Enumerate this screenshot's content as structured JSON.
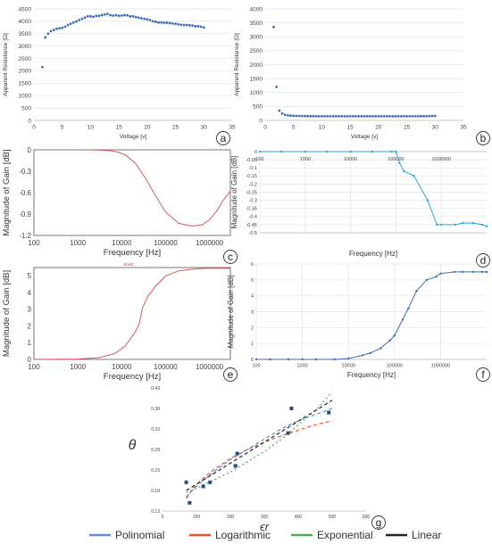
{
  "chart_data": [
    {
      "id": "a",
      "type": "scatter",
      "label": "a",
      "xlabel": "Voltage [v]",
      "ylabel": "Apparent Resistance [Ω]",
      "xlim": [
        0,
        35
      ],
      "ylim": [
        0,
        4500
      ],
      "xticks": [
        0,
        5,
        10,
        15,
        20,
        25,
        30,
        35
      ],
      "yticks": [
        0,
        500,
        1000,
        1500,
        2000,
        2500,
        3000,
        3500,
        4000,
        4500
      ],
      "grid": true,
      "color": "#3b6db4",
      "x": [
        1.5,
        2,
        2.5,
        3,
        3.5,
        4,
        4.5,
        5,
        5.5,
        6,
        6.5,
        7,
        7.5,
        8,
        8.5,
        9,
        9.5,
        10,
        10.5,
        11,
        11.5,
        12,
        12.5,
        13,
        13.5,
        14,
        14.5,
        15,
        15.5,
        16,
        16.5,
        17,
        17.5,
        18,
        18.5,
        19,
        19.5,
        20,
        20.5,
        21,
        21.5,
        22,
        22.5,
        23,
        23.5,
        24,
        24.5,
        25,
        25.5,
        26,
        26.5,
        27,
        27.5,
        28,
        28.5,
        29,
        29.5,
        30
      ],
      "y": [
        2150,
        3350,
        3500,
        3600,
        3650,
        3700,
        3720,
        3740,
        3780,
        3850,
        3900,
        3950,
        4000,
        4050,
        4100,
        4150,
        4200,
        4200,
        4180,
        4220,
        4220,
        4250,
        4270,
        4300,
        4250,
        4230,
        4250,
        4220,
        4230,
        4250,
        4240,
        4200,
        4200,
        4170,
        4150,
        4120,
        4100,
        4080,
        4050,
        4000,
        3980,
        3950,
        3950,
        3940,
        3940,
        3930,
        3910,
        3900,
        3880,
        3860,
        3850,
        3850,
        3840,
        3830,
        3800,
        3800,
        3780,
        3750
      ]
    },
    {
      "id": "b",
      "type": "scatter",
      "label": "b",
      "xlabel": "Voltage [v]",
      "ylabel": "Apparent Resistance [Ω]",
      "xlim": [
        0,
        35
      ],
      "ylim": [
        0,
        4000
      ],
      "xticks": [
        0,
        5,
        10,
        15,
        20,
        25,
        30,
        35
      ],
      "yticks": [
        0,
        500,
        1000,
        1500,
        2000,
        2500,
        3000,
        3500,
        4000
      ],
      "grid": true,
      "color": "#3b6db4",
      "x": [
        1.5,
        2,
        2.5,
        3,
        3.5,
        4,
        4.5,
        5,
        5.5,
        6,
        6.5,
        7,
        7.5,
        8,
        8.5,
        9,
        9.5,
        10,
        10.5,
        11,
        11.5,
        12,
        12.5,
        13,
        13.5,
        14,
        14.5,
        15,
        15.5,
        16,
        16.5,
        17,
        17.5,
        18,
        18.5,
        19,
        19.5,
        20,
        20.5,
        21,
        21.5,
        22,
        22.5,
        23,
        23.5,
        24,
        24.5,
        25,
        25.5,
        26,
        26.5,
        27,
        27.5,
        28,
        28.5,
        29,
        29.5,
        30
      ],
      "y": [
        3350,
        1200,
        350,
        250,
        200,
        180,
        170,
        165,
        160,
        160,
        155,
        155,
        150,
        150,
        150,
        150,
        148,
        148,
        148,
        148,
        148,
        148,
        148,
        148,
        148,
        148,
        148,
        148,
        148,
        148,
        148,
        148,
        148,
        148,
        148,
        148,
        148,
        148,
        148,
        148,
        148,
        148,
        148,
        148,
        148,
        148,
        148,
        148,
        148,
        148,
        148,
        148,
        150,
        150,
        150,
        152,
        155,
        160
      ]
    },
    {
      "id": "c",
      "type": "line",
      "label": "c",
      "xlabel": "Frequency [Hz]",
      "ylabel": "Magnitude of Gain [dB]",
      "xscale": "log",
      "xlim": [
        100,
        3000000
      ],
      "ylim": [
        -1.2,
        0
      ],
      "xticks": [
        100,
        1000,
        10000,
        100000,
        1000000
      ],
      "xticklabels": [
        "100",
        "1000",
        "10000",
        "100000",
        "1000000"
      ],
      "yticks": [
        0,
        -0.3,
        -0.6,
        -0.9,
        -1.2
      ],
      "yticklabels": [
        "0",
        "-0.3",
        "-0.6",
        "-0.9",
        "-1.2"
      ],
      "grid": false,
      "color": "#d35a5a",
      "x": [
        2000,
        5000,
        8000,
        12000,
        20000,
        35000,
        60000,
        100000,
        200000,
        400000,
        700000,
        1000000,
        1500000,
        2000000,
        3000000
      ],
      "y": [
        0,
        -0.01,
        -0.03,
        -0.07,
        -0.18,
        -0.4,
        -0.65,
        -0.87,
        -1.03,
        -1.07,
        -1.05,
        -0.98,
        -0.85,
        -0.72,
        -0.58
      ]
    },
    {
      "id": "d",
      "type": "line",
      "label": "d",
      "xlabel": "Frequency [Hz]",
      "ylabel": "Magnitude of Gain [dB]",
      "xscale": "log",
      "xlim": [
        100,
        10000000
      ],
      "ylim": [
        -0.5,
        0
      ],
      "xticks": [
        100,
        1000,
        10000,
        100000,
        1000000
      ],
      "xticklabels": [
        "100",
        "1000",
        "10000",
        "100000",
        "1000000"
      ],
      "yticks": [
        0,
        -0.05,
        -0.1,
        -0.15,
        -0.2,
        -0.25,
        -0.3,
        -0.35,
        -0.4,
        -0.45,
        -0.5
      ],
      "yticklabels": [
        "0",
        "-0.05",
        "-0.1",
        "-0.15",
        "-0.2",
        "-0.25",
        "-0.3",
        "-0.35",
        "-0.4",
        "-0.45",
        "-0.5"
      ],
      "grid": true,
      "color": "#29a6d8",
      "x": [
        100,
        300,
        1000,
        3000,
        10000,
        30000,
        80000,
        100000,
        120000,
        150000,
        250000,
        500000,
        800000,
        1000000,
        2000000,
        3000000,
        5000000,
        8000000,
        10000000
      ],
      "y": [
        0,
        0,
        0,
        0,
        0,
        0,
        0,
        0,
        -0.07,
        -0.12,
        -0.15,
        -0.3,
        -0.45,
        -0.45,
        -0.45,
        -0.44,
        -0.44,
        -0.45,
        -0.46
      ]
    },
    {
      "id": "e",
      "type": "line",
      "label": "e",
      "xlabel": "Frequency [Hz]",
      "ylabel": "Magnitude of Gain [dB]",
      "xscale": "log",
      "xlim": [
        100,
        3000000
      ],
      "ylim": [
        0,
        5.5
      ],
      "xticks": [
        100,
        1000,
        10000,
        100000,
        1000000
      ],
      "xticklabels": [
        "100",
        "1000",
        "10000",
        "100000",
        "1000000"
      ],
      "yticks": [
        0,
        1,
        2,
        3,
        4,
        5
      ],
      "yticklabels": [
        "0",
        "1",
        "2",
        "3",
        "4",
        "5"
      ],
      "marker_label": "V(n4)",
      "grid": false,
      "color": "#d35a5a",
      "x": [
        100,
        1000,
        3000,
        7000,
        12000,
        20000,
        25000,
        30000,
        40000,
        60000,
        100000,
        200000,
        400000,
        800000,
        1500000,
        3000000
      ],
      "y": [
        0,
        0.02,
        0.1,
        0.35,
        0.8,
        1.6,
        2.1,
        3.1,
        3.8,
        4.4,
        5.0,
        5.3,
        5.4,
        5.45,
        5.45,
        5.45
      ]
    },
    {
      "id": "f",
      "type": "line",
      "label": "f",
      "xlabel": "Frequency [Hz]",
      "ylabel": "Magnitude of Gain [dB]",
      "xscale": "log",
      "xlim": [
        100,
        10000000
      ],
      "ylim": [
        0,
        6
      ],
      "xticks": [
        100,
        1000,
        10000,
        100000,
        1000000
      ],
      "xticklabels": [
        "100",
        "1000",
        "10000",
        "100000",
        "1000000"
      ],
      "yticks": [
        0,
        1,
        2,
        3,
        4,
        5,
        6
      ],
      "yticklabels": [
        "0",
        "1",
        "2",
        "3",
        "4",
        "5",
        "6"
      ],
      "grid": true,
      "color": "#3b6db4",
      "x": [
        100,
        200,
        500,
        1000,
        2000,
        5000,
        10000,
        20000,
        30000,
        50000,
        80000,
        100000,
        150000,
        200000,
        300000,
        500000,
        800000,
        1000000,
        2000000,
        3000000,
        5000000,
        8000000,
        10000000
      ],
      "y": [
        0,
        0,
        0,
        0,
        0,
        0,
        0.05,
        0.25,
        0.4,
        0.7,
        1.2,
        1.5,
        2.5,
        3.2,
        4.3,
        5.0,
        5.2,
        5.4,
        5.5,
        5.5,
        5.5,
        5.5,
        5.5
      ]
    },
    {
      "id": "g",
      "type": "scatter",
      "label": "g",
      "xlabel": "ϵr",
      "ylabel": "θ",
      "xlim": [
        0,
        600
      ],
      "ylim": [
        0.13,
        0.43
      ],
      "xticks": [
        0,
        100,
        200,
        300,
        400,
        500,
        600
      ],
      "yticks": [
        0.13,
        0.18,
        0.23,
        0.28,
        0.33,
        0.38,
        0.43
      ],
      "yticklabels": [
        "0.13",
        "0.18",
        "0.23",
        "0.28",
        "0.33",
        "0.38",
        "0.43"
      ],
      "grid": false,
      "points": {
        "x": [
          70,
          80,
          120,
          140,
          215,
          220,
          370,
          380,
          490
        ],
        "y": [
          0.2,
          0.15,
          0.19,
          0.2,
          0.24,
          0.27,
          0.32,
          0.38,
          0.37
        ]
      },
      "point_color": "#1f4e8c",
      "series": [
        {
          "name": "Polinomial",
          "color": "#5b8fd6",
          "dash": "4,3",
          "x": [
            70,
            100,
            150,
            200,
            250,
            300,
            350,
            400,
            450,
            500
          ],
          "y": [
            0.165,
            0.19,
            0.225,
            0.255,
            0.28,
            0.305,
            0.33,
            0.35,
            0.365,
            0.38
          ]
        },
        {
          "name": "Logarithmic",
          "color": "#e8542c",
          "dash": "4,3",
          "x": [
            70,
            90,
            120,
            150,
            200,
            250,
            300,
            350,
            400,
            450,
            500
          ],
          "y": [
            0.16,
            0.185,
            0.21,
            0.23,
            0.258,
            0.28,
            0.298,
            0.313,
            0.327,
            0.34,
            0.35
          ]
        },
        {
          "name": "Exponential",
          "color": "#4caf50",
          "dash": "2,3",
          "x": [
            70,
            100,
            150,
            200,
            250,
            300,
            350,
            400,
            450,
            500
          ],
          "y": [
            0.175,
            0.185,
            0.205,
            0.225,
            0.25,
            0.275,
            0.305,
            0.34,
            0.375,
            0.42
          ]
        },
        {
          "name": "Linear",
          "color": "#222222",
          "dash": "4,3",
          "x": [
            70,
            500
          ],
          "y": [
            0.18,
            0.4
          ]
        }
      ]
    }
  ],
  "legend": [
    {
      "name": "Polinomial",
      "color": "#5b8fd6"
    },
    {
      "name": "Logarithmic",
      "color": "#e8542c"
    },
    {
      "name": "Exponential",
      "color": "#4caf50"
    },
    {
      "name": "Linear",
      "color": "#222222"
    }
  ]
}
